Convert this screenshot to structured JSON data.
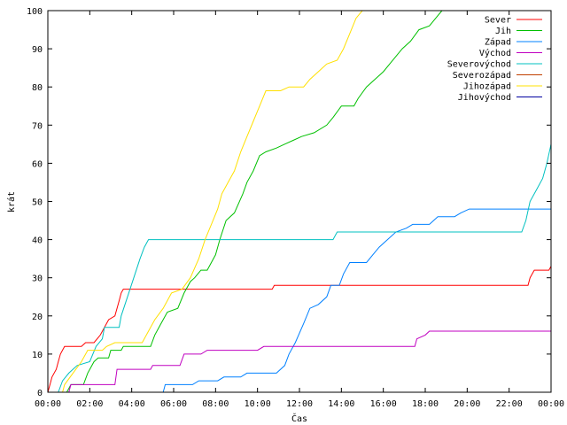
{
  "chart_data": {
    "type": "line",
    "title": "",
    "xlabel": "Čas",
    "ylabel": "krát",
    "ylim": [
      0,
      100
    ],
    "xlim": [
      0,
      24
    ],
    "grid": false,
    "legend_position": "top-right",
    "x_ticks": [
      "00:00",
      "02:00",
      "04:00",
      "06:00",
      "08:00",
      "10:00",
      "12:00",
      "14:00",
      "16:00",
      "18:00",
      "20:00",
      "22:00",
      "00:00"
    ],
    "y_ticks": [
      "0",
      "10",
      "20",
      "30",
      "40",
      "50",
      "60",
      "70",
      "80",
      "90",
      "100"
    ],
    "series": [
      {
        "name": "Sever",
        "color": "#ff0000",
        "points": [
          [
            0.0,
            0
          ],
          [
            0.1,
            2
          ],
          [
            0.2,
            4
          ],
          [
            0.4,
            6
          ],
          [
            0.5,
            8
          ],
          [
            0.6,
            10
          ],
          [
            0.8,
            12
          ],
          [
            1.6,
            12
          ],
          [
            1.8,
            13
          ],
          [
            2.2,
            13
          ],
          [
            2.5,
            15
          ],
          [
            2.7,
            17
          ],
          [
            2.9,
            19
          ],
          [
            3.2,
            20
          ],
          [
            3.4,
            24
          ],
          [
            3.5,
            26
          ],
          [
            3.6,
            27
          ],
          [
            10.7,
            27
          ],
          [
            10.8,
            28
          ],
          [
            22.9,
            28
          ],
          [
            23.0,
            30
          ],
          [
            23.1,
            31
          ],
          [
            23.2,
            32
          ],
          [
            23.9,
            32
          ],
          [
            24.0,
            33
          ]
        ]
      },
      {
        "name": "Jih",
        "color": "#00c000",
        "points": [
          [
            0.0,
            0
          ],
          [
            0.9,
            0
          ],
          [
            1.0,
            1
          ],
          [
            1.1,
            2
          ],
          [
            1.7,
            2
          ],
          [
            1.9,
            5
          ],
          [
            2.2,
            8
          ],
          [
            2.4,
            9
          ],
          [
            2.9,
            9
          ],
          [
            3.0,
            11
          ],
          [
            3.5,
            11
          ],
          [
            3.6,
            12
          ],
          [
            4.9,
            12
          ],
          [
            5.1,
            15
          ],
          [
            5.4,
            18
          ],
          [
            5.7,
            21
          ],
          [
            6.2,
            22
          ],
          [
            6.5,
            26
          ],
          [
            6.8,
            29
          ],
          [
            7.0,
            30
          ],
          [
            7.3,
            32
          ],
          [
            7.6,
            32
          ],
          [
            8.0,
            36
          ],
          [
            8.2,
            40
          ],
          [
            8.5,
            45
          ],
          [
            8.9,
            47
          ],
          [
            9.3,
            52
          ],
          [
            9.5,
            55
          ],
          [
            9.8,
            58
          ],
          [
            10.1,
            62
          ],
          [
            10.4,
            63
          ],
          [
            10.9,
            64
          ],
          [
            11.3,
            65
          ],
          [
            11.7,
            66
          ],
          [
            12.1,
            67
          ],
          [
            12.7,
            68
          ],
          [
            13.3,
            70
          ],
          [
            13.6,
            72
          ],
          [
            14.0,
            75
          ],
          [
            14.6,
            75
          ],
          [
            14.8,
            77
          ],
          [
            15.2,
            80
          ],
          [
            15.6,
            82
          ],
          [
            16.0,
            84
          ],
          [
            16.3,
            86
          ],
          [
            16.6,
            88
          ],
          [
            16.9,
            90
          ],
          [
            17.3,
            92
          ],
          [
            17.7,
            95
          ],
          [
            18.2,
            96
          ],
          [
            18.5,
            98
          ],
          [
            18.8,
            100
          ]
        ]
      },
      {
        "name": "Západ",
        "color": "#0080ff",
        "points": [
          [
            0.0,
            0
          ],
          [
            5.5,
            0
          ],
          [
            5.6,
            2
          ],
          [
            6.9,
            2
          ],
          [
            7.2,
            3
          ],
          [
            8.1,
            3
          ],
          [
            8.4,
            4
          ],
          [
            9.2,
            4
          ],
          [
            9.5,
            5
          ],
          [
            10.9,
            5
          ],
          [
            11.3,
            7
          ],
          [
            11.5,
            10
          ],
          [
            11.8,
            13
          ],
          [
            12.2,
            18
          ],
          [
            12.5,
            22
          ],
          [
            12.9,
            23
          ],
          [
            13.3,
            25
          ],
          [
            13.5,
            28
          ],
          [
            13.9,
            28
          ],
          [
            14.1,
            31
          ],
          [
            14.4,
            34
          ],
          [
            15.2,
            34
          ],
          [
            15.5,
            36
          ],
          [
            15.8,
            38
          ],
          [
            16.2,
            40
          ],
          [
            16.6,
            42
          ],
          [
            17.1,
            43
          ],
          [
            17.4,
            44
          ],
          [
            18.2,
            44
          ],
          [
            18.6,
            46
          ],
          [
            19.4,
            46
          ],
          [
            19.7,
            47
          ],
          [
            20.1,
            48
          ],
          [
            24.0,
            48
          ]
        ]
      },
      {
        "name": "Východ",
        "color": "#c000c0",
        "points": [
          [
            0.0,
            0
          ],
          [
            1.0,
            0
          ],
          [
            1.1,
            2
          ],
          [
            3.2,
            2
          ],
          [
            3.3,
            6
          ],
          [
            4.9,
            6
          ],
          [
            5.0,
            7
          ],
          [
            6.3,
            7
          ],
          [
            6.5,
            10
          ],
          [
            7.3,
            10
          ],
          [
            7.6,
            11
          ],
          [
            10.0,
            11
          ],
          [
            10.3,
            12
          ],
          [
            17.5,
            12
          ],
          [
            17.6,
            14
          ],
          [
            18.0,
            15
          ],
          [
            18.2,
            16
          ],
          [
            24.0,
            16
          ]
        ]
      },
      {
        "name": "Severovýchod",
        "color": "#00c0c0",
        "points": [
          [
            0.0,
            0
          ],
          [
            0.5,
            0
          ],
          [
            0.7,
            3
          ],
          [
            1.0,
            5
          ],
          [
            1.4,
            7
          ],
          [
            2.0,
            8
          ],
          [
            2.3,
            12
          ],
          [
            2.6,
            14
          ],
          [
            2.7,
            17
          ],
          [
            3.4,
            17
          ],
          [
            3.5,
            20
          ],
          [
            3.8,
            25
          ],
          [
            4.1,
            30
          ],
          [
            4.4,
            35
          ],
          [
            4.6,
            38
          ],
          [
            4.8,
            40
          ],
          [
            13.6,
            40
          ],
          [
            13.8,
            42
          ],
          [
            22.6,
            42
          ],
          [
            22.8,
            45
          ],
          [
            23.0,
            50
          ],
          [
            23.3,
            53
          ],
          [
            23.6,
            56
          ],
          [
            23.8,
            60
          ],
          [
            24.0,
            65
          ]
        ]
      },
      {
        "name": "Severozápad",
        "color": "#c04000",
        "points": []
      },
      {
        "name": "Jihozápad",
        "color": "#ffe000",
        "points": [
          [
            0.0,
            0
          ],
          [
            0.7,
            0
          ],
          [
            0.8,
            2
          ],
          [
            1.2,
            5
          ],
          [
            1.6,
            8
          ],
          [
            1.9,
            11
          ],
          [
            2.6,
            11
          ],
          [
            2.8,
            12
          ],
          [
            3.2,
            13
          ],
          [
            4.5,
            13
          ],
          [
            4.8,
            16
          ],
          [
            5.1,
            19
          ],
          [
            5.5,
            22
          ],
          [
            5.9,
            26
          ],
          [
            6.4,
            27
          ],
          [
            6.8,
            30
          ],
          [
            7.2,
            35
          ],
          [
            7.5,
            40
          ],
          [
            7.8,
            44
          ],
          [
            8.1,
            48
          ],
          [
            8.3,
            52
          ],
          [
            8.6,
            55
          ],
          [
            8.9,
            58
          ],
          [
            9.2,
            63
          ],
          [
            9.5,
            67
          ],
          [
            9.8,
            71
          ],
          [
            10.1,
            75
          ],
          [
            10.4,
            79
          ],
          [
            11.1,
            79
          ],
          [
            11.5,
            80
          ],
          [
            12.2,
            80
          ],
          [
            12.5,
            82
          ],
          [
            12.9,
            84
          ],
          [
            13.3,
            86
          ],
          [
            13.8,
            87
          ],
          [
            14.1,
            90
          ],
          [
            14.4,
            94
          ],
          [
            14.7,
            98
          ],
          [
            15.0,
            100
          ]
        ]
      },
      {
        "name": "Jihovýchod",
        "color": "#0000a0",
        "points": []
      }
    ]
  }
}
